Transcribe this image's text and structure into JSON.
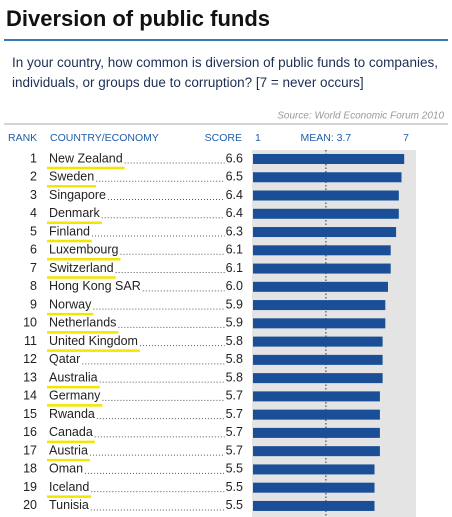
{
  "chart_data": {
    "type": "bar",
    "orientation": "horizontal",
    "title": "Diversion of public funds",
    "subtitle": "In your country, how common is diversion of public funds to companies, individuals, or groups due to corruption?  [7 = never occurs]",
    "source": "Source: World Economic Forum 2010",
    "headers": [
      "RANK",
      "COUNTRY/ECONOMY",
      "SCORE"
    ],
    "ranks": [
      1,
      2,
      3,
      4,
      5,
      6,
      7,
      8,
      9,
      10,
      11,
      12,
      13,
      14,
      15,
      16,
      17,
      18,
      19,
      20
    ],
    "categories": [
      "New Zealand",
      "Sweden",
      "Singapore",
      "Denmark",
      "Finland",
      "Luxembourg",
      "Switzerland",
      "Hong Kong SAR",
      "Norway",
      "Netherlands",
      "United Kingdom",
      "Qatar",
      "Australia",
      "Germany",
      "Rwanda",
      "Canada",
      "Austria",
      "Oman",
      "Iceland",
      "Tunisia"
    ],
    "values": [
      6.6,
      6.5,
      6.4,
      6.4,
      6.3,
      6.1,
      6.1,
      6.0,
      5.9,
      5.9,
      5.8,
      5.8,
      5.8,
      5.7,
      5.7,
      5.7,
      5.7,
      5.5,
      5.5,
      5.5
    ],
    "value_labels": [
      "6.6",
      "6.5",
      "6.4",
      "6.4",
      "6.3",
      "6.1",
      "6.1",
      "6.0",
      "5.9",
      "5.9",
      "5.8",
      "5.8",
      "5.8",
      "5.7",
      "5.7",
      "5.7",
      "5.7",
      "5.5",
      "5.5",
      "5.5"
    ],
    "highlight": [
      true,
      true,
      false,
      true,
      true,
      true,
      true,
      false,
      true,
      true,
      true,
      false,
      true,
      true,
      false,
      true,
      true,
      false,
      true,
      false
    ],
    "color": "#1a4e96",
    "highlight_color": "#f2e600",
    "xlim": [
      1,
      7
    ],
    "xticks": [
      1,
      {
        "value": 3.7,
        "label": "MEAN: 3.7"
      },
      7
    ]
  }
}
